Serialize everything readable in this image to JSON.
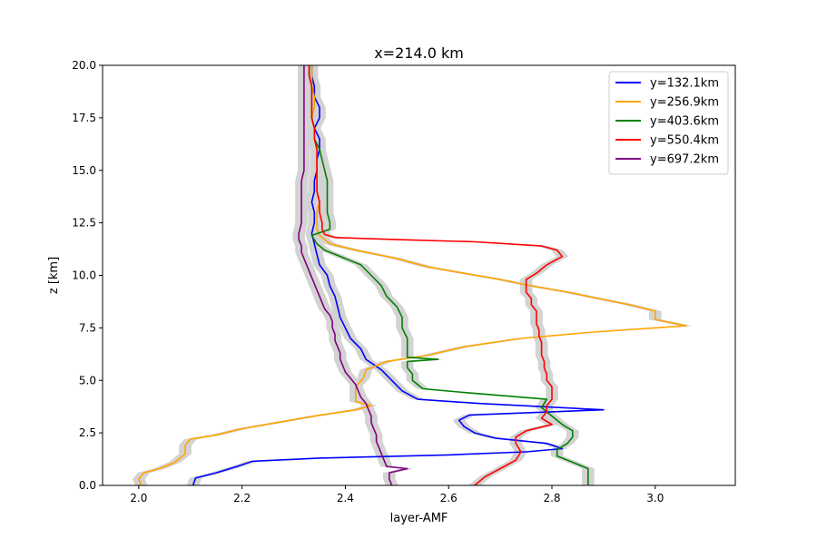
{
  "chart_data": {
    "type": "line",
    "title": "x=214.0 km",
    "xlabel": "layer-AMF",
    "ylabel": "z [km]",
    "xlim": [
      1.93,
      3.155
    ],
    "ylim": [
      0,
      20
    ],
    "xticks": [
      "2.0",
      "2.2",
      "2.4",
      "2.6",
      "2.8",
      "3.0"
    ],
    "xtick_values": [
      2.0,
      2.2,
      2.4,
      2.6,
      2.8,
      3.0
    ],
    "yticks": [
      "0.0",
      "2.5",
      "5.0",
      "7.5",
      "10.0",
      "12.5",
      "15.0",
      "17.5",
      "20.0"
    ],
    "ytick_values": [
      0,
      2.5,
      5.0,
      7.5,
      10.0,
      12.5,
      15.0,
      17.5,
      20.0
    ],
    "grid": false,
    "legend_position": "top-right",
    "band_color": "#d3d3d3",
    "series": [
      {
        "name": "y=132.1km",
        "color": "#0000ff",
        "band_halfwidth": 0.012,
        "points": [
          [
            2.105,
            0.0
          ],
          [
            2.11,
            0.35
          ],
          [
            2.15,
            0.6
          ],
          [
            2.19,
            0.9
          ],
          [
            2.22,
            1.15
          ],
          [
            2.35,
            1.3
          ],
          [
            2.6,
            1.45
          ],
          [
            2.75,
            1.6
          ],
          [
            2.82,
            1.75
          ],
          [
            2.79,
            2.0
          ],
          [
            2.69,
            2.25
          ],
          [
            2.65,
            2.5
          ],
          [
            2.63,
            2.8
          ],
          [
            2.62,
            3.1
          ],
          [
            2.64,
            3.35
          ],
          [
            2.9,
            3.6
          ],
          [
            2.66,
            3.9
          ],
          [
            2.54,
            4.1
          ],
          [
            2.51,
            4.5
          ],
          [
            2.49,
            5.0
          ],
          [
            2.47,
            5.5
          ],
          [
            2.44,
            6.0
          ],
          [
            2.43,
            6.5
          ],
          [
            2.41,
            7.0
          ],
          [
            2.4,
            7.5
          ],
          [
            2.39,
            8.0
          ],
          [
            2.385,
            8.5
          ],
          [
            2.38,
            9.0
          ],
          [
            2.37,
            9.5
          ],
          [
            2.365,
            10.0
          ],
          [
            2.35,
            10.5
          ],
          [
            2.345,
            11.0
          ],
          [
            2.34,
            11.5
          ],
          [
            2.335,
            12.0
          ],
          [
            2.34,
            12.5
          ],
          [
            2.34,
            13.0
          ],
          [
            2.335,
            13.5
          ],
          [
            2.34,
            14.0
          ],
          [
            2.34,
            14.5
          ],
          [
            2.345,
            15.0
          ],
          [
            2.345,
            15.5
          ],
          [
            2.35,
            16.0
          ],
          [
            2.35,
            16.5
          ],
          [
            2.34,
            17.0
          ],
          [
            2.35,
            17.5
          ],
          [
            2.35,
            18.0
          ],
          [
            2.34,
            18.5
          ],
          [
            2.34,
            19.0
          ],
          [
            2.335,
            19.5
          ],
          [
            2.335,
            20.0
          ]
        ]
      },
      {
        "name": "y=256.9km",
        "color": "#ffa500",
        "band_halfwidth": 0.012,
        "points": [
          [
            2.005,
            0.0
          ],
          [
            2.0,
            0.3
          ],
          [
            2.01,
            0.6
          ],
          [
            2.04,
            0.8
          ],
          [
            2.07,
            1.1
          ],
          [
            2.09,
            1.5
          ],
          [
            2.09,
            1.9
          ],
          [
            2.1,
            2.2
          ],
          [
            2.15,
            2.4
          ],
          [
            2.2,
            2.7
          ],
          [
            2.27,
            3.0
          ],
          [
            2.34,
            3.3
          ],
          [
            2.42,
            3.6
          ],
          [
            2.45,
            3.8
          ],
          [
            2.42,
            4.0
          ],
          [
            2.42,
            4.3
          ],
          [
            2.42,
            4.7
          ],
          [
            2.435,
            5.1
          ],
          [
            2.44,
            5.5
          ],
          [
            2.48,
            5.9
          ],
          [
            2.56,
            6.2
          ],
          [
            2.63,
            6.6
          ],
          [
            2.74,
            7.0
          ],
          [
            2.88,
            7.3
          ],
          [
            3.06,
            7.6
          ],
          [
            3.0,
            7.9
          ],
          [
            3.0,
            8.3
          ],
          [
            2.95,
            8.6
          ],
          [
            2.89,
            8.9
          ],
          [
            2.83,
            9.2
          ],
          [
            2.76,
            9.5
          ],
          [
            2.7,
            9.8
          ],
          [
            2.63,
            10.1
          ],
          [
            2.56,
            10.4
          ],
          [
            2.5,
            10.8
          ],
          [
            2.42,
            11.2
          ],
          [
            2.37,
            11.5
          ],
          [
            2.35,
            11.9
          ],
          [
            2.345,
            12.2
          ],
          [
            2.345,
            12.5
          ],
          [
            2.345,
            13.0
          ],
          [
            2.35,
            13.5
          ],
          [
            2.345,
            14.0
          ],
          [
            2.345,
            14.5
          ],
          [
            2.345,
            15.0
          ],
          [
            2.345,
            15.5
          ],
          [
            2.345,
            16.0
          ],
          [
            2.34,
            16.5
          ],
          [
            2.34,
            17.0
          ],
          [
            2.335,
            17.5
          ],
          [
            2.34,
            18.0
          ],
          [
            2.34,
            18.5
          ],
          [
            2.335,
            19.0
          ],
          [
            2.335,
            19.5
          ],
          [
            2.335,
            20.0
          ]
        ]
      },
      {
        "name": "y=403.6km",
        "color": "#008000",
        "band_halfwidth": 0.012,
        "points": [
          [
            2.87,
            0.0
          ],
          [
            2.87,
            0.5
          ],
          [
            2.87,
            0.8
          ],
          [
            2.84,
            1.1
          ],
          [
            2.81,
            1.4
          ],
          [
            2.81,
            1.7
          ],
          [
            2.83,
            2.0
          ],
          [
            2.84,
            2.3
          ],
          [
            2.84,
            2.6
          ],
          [
            2.82,
            2.9
          ],
          [
            2.8,
            3.3
          ],
          [
            2.78,
            3.7
          ],
          [
            2.79,
            4.1
          ],
          [
            2.64,
            4.4
          ],
          [
            2.55,
            4.6
          ],
          [
            2.53,
            5.0
          ],
          [
            2.53,
            5.3
          ],
          [
            2.52,
            5.6
          ],
          [
            2.52,
            5.9
          ],
          [
            2.58,
            6.0
          ],
          [
            2.52,
            6.1
          ],
          [
            2.52,
            6.5
          ],
          [
            2.52,
            7.0
          ],
          [
            2.51,
            7.5
          ],
          [
            2.51,
            8.0
          ],
          [
            2.5,
            8.5
          ],
          [
            2.48,
            9.0
          ],
          [
            2.47,
            9.5
          ],
          [
            2.45,
            10.0
          ],
          [
            2.43,
            10.5
          ],
          [
            2.38,
            11.0
          ],
          [
            2.36,
            11.2
          ],
          [
            2.345,
            11.5
          ],
          [
            2.335,
            11.9
          ],
          [
            2.37,
            12.2
          ],
          [
            2.37,
            12.5
          ],
          [
            2.365,
            13.0
          ],
          [
            2.365,
            13.5
          ],
          [
            2.365,
            14.0
          ],
          [
            2.365,
            14.5
          ],
          [
            2.36,
            15.0
          ],
          [
            2.355,
            15.5
          ],
          [
            2.35,
            16.0
          ],
          [
            2.34,
            16.5
          ],
          [
            2.34,
            17.0
          ],
          [
            2.335,
            17.5
          ],
          [
            2.335,
            18.0
          ],
          [
            2.335,
            18.5
          ],
          [
            2.335,
            19.0
          ],
          [
            2.33,
            19.5
          ],
          [
            2.33,
            20.0
          ]
        ]
      },
      {
        "name": "y=550.4km",
        "color": "#ff0000",
        "band_halfwidth": 0.012,
        "points": [
          [
            2.65,
            0.0
          ],
          [
            2.67,
            0.4
          ],
          [
            2.7,
            0.8
          ],
          [
            2.73,
            1.2
          ],
          [
            2.74,
            1.6
          ],
          [
            2.73,
            2.0
          ],
          [
            2.73,
            2.3
          ],
          [
            2.75,
            2.6
          ],
          [
            2.8,
            2.9
          ],
          [
            2.78,
            3.2
          ],
          [
            2.79,
            3.5
          ],
          [
            2.79,
            3.8
          ],
          [
            2.8,
            4.1
          ],
          [
            2.8,
            4.4
          ],
          [
            2.8,
            4.7
          ],
          [
            2.79,
            5.0
          ],
          [
            2.79,
            5.3
          ],
          [
            2.785,
            5.6
          ],
          [
            2.785,
            5.9
          ],
          [
            2.78,
            6.2
          ],
          [
            2.78,
            6.5
          ],
          [
            2.78,
            6.8
          ],
          [
            2.775,
            7.1
          ],
          [
            2.775,
            7.4
          ],
          [
            2.77,
            7.7
          ],
          [
            2.77,
            8.0
          ],
          [
            2.77,
            8.3
          ],
          [
            2.76,
            8.6
          ],
          [
            2.76,
            8.9
          ],
          [
            2.75,
            9.2
          ],
          [
            2.75,
            9.5
          ],
          [
            2.75,
            9.8
          ],
          [
            2.77,
            10.1
          ],
          [
            2.79,
            10.5
          ],
          [
            2.82,
            10.9
          ],
          [
            2.81,
            11.2
          ],
          [
            2.78,
            11.4
          ],
          [
            2.65,
            11.6
          ],
          [
            2.5,
            11.7
          ],
          [
            2.38,
            11.8
          ],
          [
            2.36,
            11.95
          ],
          [
            2.355,
            12.2
          ],
          [
            2.355,
            12.5
          ],
          [
            2.35,
            13.0
          ],
          [
            2.35,
            13.5
          ],
          [
            2.345,
            14.0
          ],
          [
            2.345,
            14.5
          ],
          [
            2.345,
            15.0
          ],
          [
            2.345,
            15.5
          ],
          [
            2.345,
            16.0
          ],
          [
            2.34,
            16.5
          ],
          [
            2.34,
            17.0
          ],
          [
            2.335,
            17.5
          ],
          [
            2.335,
            18.0
          ],
          [
            2.335,
            18.5
          ],
          [
            2.335,
            19.0
          ],
          [
            2.33,
            19.5
          ],
          [
            2.33,
            20.0
          ]
        ]
      },
      {
        "name": "y=697.2km",
        "color": "#800080",
        "band_halfwidth": 0.012,
        "points": [
          [
            2.49,
            0.0
          ],
          [
            2.485,
            0.3
          ],
          [
            2.485,
            0.6
          ],
          [
            2.52,
            0.8
          ],
          [
            2.48,
            0.9
          ],
          [
            2.475,
            1.2
          ],
          [
            2.47,
            1.5
          ],
          [
            2.465,
            1.8
          ],
          [
            2.46,
            2.1
          ],
          [
            2.46,
            2.4
          ],
          [
            2.455,
            2.7
          ],
          [
            2.45,
            3.0
          ],
          [
            2.45,
            3.3
          ],
          [
            2.445,
            3.6
          ],
          [
            2.44,
            3.9
          ],
          [
            2.43,
            4.2
          ],
          [
            2.425,
            4.5
          ],
          [
            2.42,
            4.8
          ],
          [
            2.41,
            5.1
          ],
          [
            2.4,
            5.4
          ],
          [
            2.395,
            5.7
          ],
          [
            2.39,
            6.0
          ],
          [
            2.39,
            6.3
          ],
          [
            2.385,
            6.6
          ],
          [
            2.38,
            6.9
          ],
          [
            2.38,
            7.2
          ],
          [
            2.375,
            7.5
          ],
          [
            2.375,
            7.8
          ],
          [
            2.37,
            8.1
          ],
          [
            2.36,
            8.4
          ],
          [
            2.355,
            8.7
          ],
          [
            2.35,
            9.0
          ],
          [
            2.345,
            9.3
          ],
          [
            2.34,
            9.6
          ],
          [
            2.335,
            9.9
          ],
          [
            2.33,
            10.2
          ],
          [
            2.325,
            10.5
          ],
          [
            2.32,
            10.8
          ],
          [
            2.315,
            11.1
          ],
          [
            2.315,
            11.4
          ],
          [
            2.31,
            11.7
          ],
          [
            2.31,
            12.0
          ],
          [
            2.315,
            12.5
          ],
          [
            2.315,
            13.0
          ],
          [
            2.315,
            13.5
          ],
          [
            2.315,
            14.0
          ],
          [
            2.315,
            14.5
          ],
          [
            2.32,
            15.0
          ],
          [
            2.32,
            15.5
          ],
          [
            2.32,
            16.0
          ],
          [
            2.32,
            16.5
          ],
          [
            2.32,
            17.0
          ],
          [
            2.32,
            17.5
          ],
          [
            2.32,
            18.0
          ],
          [
            2.32,
            18.5
          ],
          [
            2.32,
            19.0
          ],
          [
            2.32,
            19.5
          ],
          [
            2.32,
            20.0
          ]
        ]
      }
    ]
  }
}
